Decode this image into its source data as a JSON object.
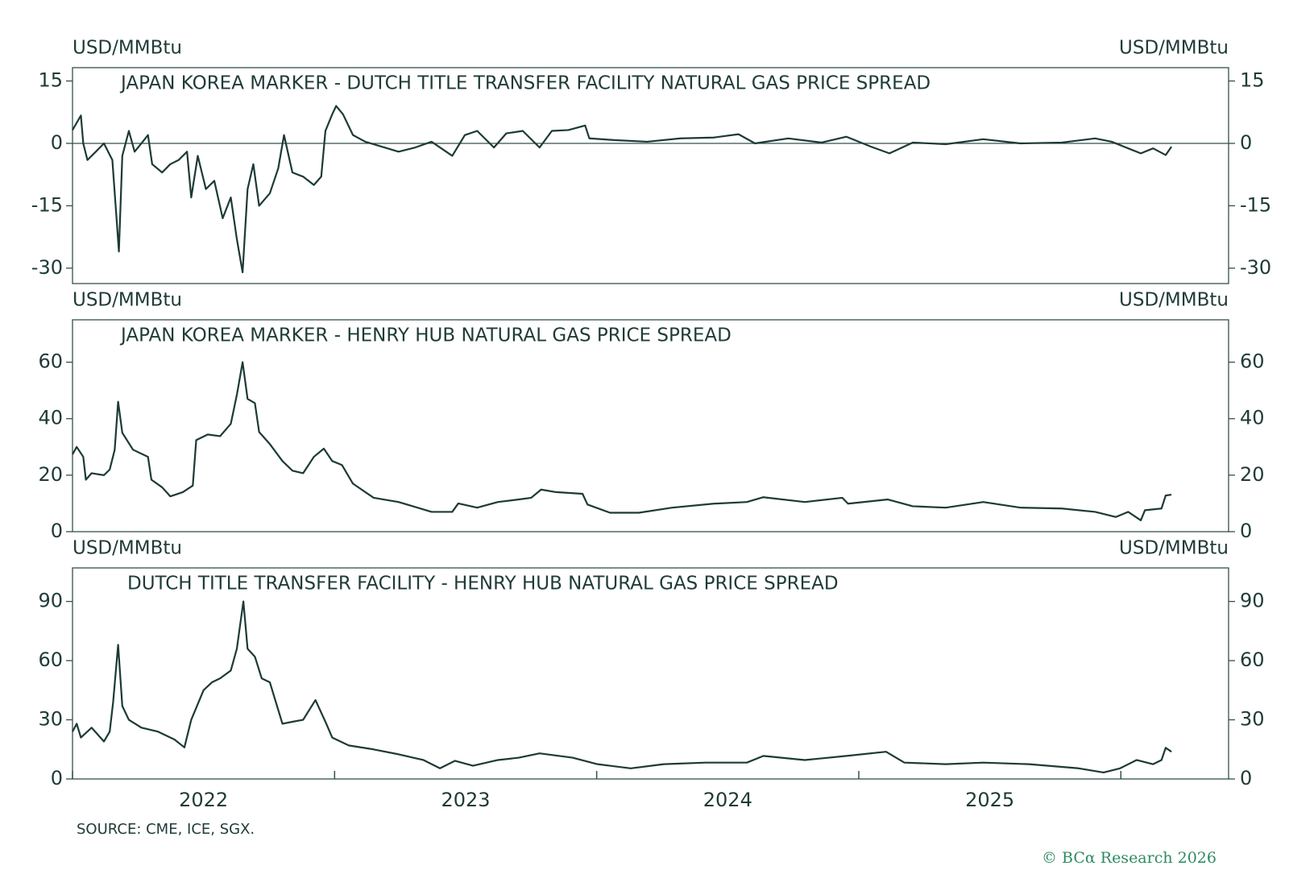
{
  "chart_data": [
    {
      "type": "line",
      "title": "JAPAN KOREA MARKER - DUTCH TITLE TRANSFER FACILITY NATURAL GAS PRICE SPREAD",
      "y_label": "USD/MMBtu",
      "ylim": [
        -33.7,
        18.2
      ],
      "yticks": [
        15,
        0,
        -15,
        -30
      ],
      "zero_line": true,
      "xlim": [
        2022,
        2026.411
      ],
      "x": [
        2022.0,
        2022.032,
        2022.041,
        2022.057,
        2022.089,
        2022.12,
        2022.152,
        2022.168,
        2022.177,
        2022.19,
        2022.215,
        2022.237,
        2022.263,
        2022.288,
        2022.304,
        2022.342,
        2022.373,
        2022.405,
        2022.437,
        2022.453,
        2022.478,
        2022.509,
        2022.541,
        2022.573,
        2022.604,
        2022.627,
        2022.649,
        2022.668,
        2022.69,
        2022.712,
        2022.753,
        2022.785,
        2022.807,
        2022.839,
        2022.88,
        2022.921,
        2022.949,
        2022.965,
        2022.991,
        2023.006,
        2023.032,
        2023.07,
        2023.117,
        2023.18,
        2023.244,
        2023.307,
        2023.37,
        2023.449,
        2023.497,
        2023.544,
        2023.608,
        2023.655,
        2023.718,
        2023.782,
        2023.829,
        2023.892,
        2023.956,
        2023.972,
        2024.066,
        2024.193,
        2024.32,
        2024.446,
        2024.541,
        2024.604,
        2024.731,
        2024.858,
        2024.953,
        2025.047,
        2025.117,
        2025.206,
        2025.332,
        2025.475,
        2025.617,
        2025.775,
        2025.902,
        2025.965,
        2026.028,
        2026.076,
        2026.123,
        2026.171,
        2026.193
      ],
      "series": [
        {
          "color": "#1c3a36",
          "values": [
            3.2,
            6.7,
            0,
            -4,
            -2,
            0,
            -4,
            -18,
            -26,
            -3,
            3,
            -2,
            0,
            2,
            -5,
            -7,
            -5,
            -4,
            -2,
            -13,
            -3,
            -11,
            -9,
            -18,
            -13,
            -23,
            -31,
            -11,
            -5,
            -15,
            -12,
            -6,
            2,
            -7,
            -8,
            -10,
            -8,
            3,
            7,
            9,
            7,
            2,
            0.4,
            -0.8,
            -2,
            -1,
            0.4,
            -3,
            2,
            3,
            -1,
            2.4,
            3,
            -1,
            3,
            3.2,
            4.3,
            1.2,
            0.8,
            0.4,
            1.2,
            1.4,
            2.2,
            0,
            1.2,
            0.2,
            1.6,
            -0.8,
            -2.4,
            0.2,
            -0.2,
            1,
            0,
            0.2,
            1.2,
            0.4,
            -1.2,
            -2.4,
            -1.2,
            -2.8,
            -0.8
          ]
        }
      ]
    },
    {
      "type": "line",
      "title": "JAPAN KOREA MARKER - HENRY HUB NATURAL GAS PRICE SPREAD",
      "y_label": "USD/MMBtu",
      "ylim": [
        0,
        75
      ],
      "yticks": [
        60,
        40,
        20,
        0
      ],
      "zero_line": false,
      "xlim": [
        2022,
        2026.411
      ],
      "x": [
        2022.0,
        2022.016,
        2022.041,
        2022.051,
        2022.073,
        2022.12,
        2022.142,
        2022.161,
        2022.174,
        2022.19,
        2022.231,
        2022.288,
        2022.301,
        2022.342,
        2022.373,
        2022.421,
        2022.459,
        2022.472,
        2022.516,
        2022.563,
        2022.604,
        2022.627,
        2022.649,
        2022.668,
        2022.696,
        2022.712,
        2022.753,
        2022.801,
        2022.839,
        2022.88,
        2022.921,
        2022.959,
        2022.991,
        2023.028,
        2023.07,
        2023.149,
        2023.244,
        2023.37,
        2023.449,
        2023.472,
        2023.544,
        2023.623,
        2023.703,
        2023.75,
        2023.788,
        2023.845,
        2023.946,
        2023.965,
        2024.051,
        2024.161,
        2024.288,
        2024.446,
        2024.573,
        2024.636,
        2024.794,
        2024.937,
        2024.959,
        2025.111,
        2025.206,
        2025.332,
        2025.475,
        2025.617,
        2025.775,
        2025.902,
        2025.981,
        2026.028,
        2026.076,
        2026.092,
        2026.155,
        2026.171,
        2026.193
      ],
      "series": [
        {
          "color": "#1c3a36",
          "values": [
            27.4,
            30,
            26.5,
            18.4,
            20.7,
            20,
            22,
            29,
            46,
            35,
            29,
            26.5,
            18.4,
            15.7,
            12.5,
            14,
            16.3,
            32.4,
            34.4,
            33.8,
            38.2,
            48.4,
            60,
            47,
            45.5,
            35.3,
            31,
            25,
            21.6,
            20.7,
            26.5,
            29.4,
            25,
            23.6,
            17,
            12,
            10.5,
            7,
            7,
            10,
            8.5,
            10.5,
            11.4,
            12,
            14.9,
            14,
            13.4,
            9.6,
            6.7,
            6.7,
            8.5,
            9.9,
            10.5,
            12.2,
            10.5,
            12,
            9.9,
            11.4,
            9,
            8.5,
            10.5,
            8.5,
            8.2,
            7,
            5.2,
            7,
            4,
            7.6,
            8.2,
            12.8,
            13.1
          ]
        }
      ]
    },
    {
      "type": "line",
      "title": "DUTCH TITLE TRANSFER FACILITY - HENRY HUB NATURAL GAS PRICE SPREAD",
      "y_label": "USD/MMBtu",
      "ylim": [
        0,
        107
      ],
      "yticks": [
        90,
        60,
        30,
        0
      ],
      "zero_line": false,
      "xlim": [
        2022,
        2026.411
      ],
      "xticks": [
        {
          "value": 2022.5,
          "label": "2022"
        },
        {
          "value": 2023.5,
          "label": "2023"
        },
        {
          "value": 2024.5,
          "label": "2024"
        },
        {
          "value": 2025.5,
          "label": "2025"
        }
      ],
      "xtick_marks": [
        2022,
        2023,
        2024,
        2025,
        2026
      ],
      "x": [
        2022.0,
        2022.016,
        2022.032,
        2022.073,
        2022.12,
        2022.142,
        2022.155,
        2022.174,
        2022.19,
        2022.215,
        2022.263,
        2022.326,
        2022.389,
        2022.427,
        2022.453,
        2022.5,
        2022.532,
        2022.563,
        2022.604,
        2022.627,
        2022.652,
        2022.668,
        2022.696,
        2022.722,
        2022.753,
        2022.801,
        2022.839,
        2022.88,
        2022.927,
        2022.965,
        2022.991,
        2023.054,
        2023.149,
        2023.244,
        2023.339,
        2023.402,
        2023.459,
        2023.528,
        2023.623,
        2023.703,
        2023.782,
        2023.908,
        2024.003,
        2024.13,
        2024.256,
        2024.415,
        2024.573,
        2024.636,
        2024.794,
        2024.953,
        2025.104,
        2025.174,
        2025.332,
        2025.475,
        2025.649,
        2025.839,
        2025.934,
        2025.997,
        2026.06,
        2026.123,
        2026.155,
        2026.171,
        2026.193
      ],
      "series": [
        {
          "color": "#1c3a36",
          "values": [
            24,
            28,
            21,
            26,
            19,
            24,
            39,
            68,
            37,
            30,
            26,
            24,
            20,
            16,
            30,
            45,
            49,
            51,
            55,
            66,
            90,
            66,
            62,
            51,
            49,
            28,
            29,
            30,
            40,
            29,
            21,
            17,
            15,
            12.5,
            9.6,
            5.4,
            9.2,
            6.7,
            9.6,
            10.8,
            13,
            10.8,
            7.5,
            5.4,
            7.5,
            8.3,
            8.3,
            11.7,
            9.6,
            11.7,
            13.8,
            8.3,
            7.5,
            8.3,
            7.5,
            5.4,
            3.3,
            5.4,
            9.6,
            7.5,
            9.6,
            15.8,
            13.8
          ]
        }
      ]
    }
  ],
  "source": "SOURCE: CME, ICE, SGX.",
  "copyright": "© BCα Research 2026"
}
